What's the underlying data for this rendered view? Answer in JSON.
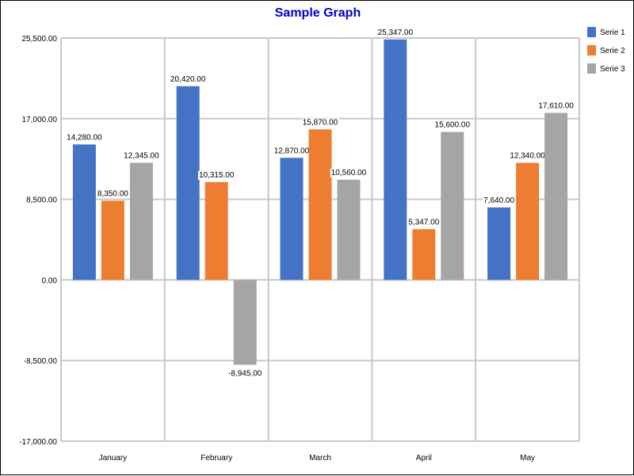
{
  "chart_data": {
    "type": "bar",
    "title": "Sample Graph",
    "categories": [
      "January",
      "February",
      "March",
      "April",
      "May"
    ],
    "series": [
      {
        "name": "Serie 1",
        "color": "#4472C4",
        "values": [
          14280,
          20420,
          12870,
          25347,
          7640
        ]
      },
      {
        "name": "Serie 2",
        "color": "#ED7D31",
        "values": [
          8350,
          10315,
          15870,
          5347,
          12340
        ]
      },
      {
        "name": "Serie 3",
        "color": "#A5A5A5",
        "values": [
          12345,
          -8945,
          10560,
          15600,
          17610
        ]
      }
    ],
    "ylim": [
      -17000,
      25500
    ],
    "yticks": [
      -17000,
      -8500,
      0,
      8500,
      17000,
      25500
    ],
    "ytick_labels": [
      "-17,000.00",
      "-8,500.00",
      "0.00",
      "8,500.00",
      "17,000.00",
      "25,500.00"
    ],
    "data_labels": [
      [
        "14,280.00",
        "20,420.00",
        "12,870.00",
        "25,347.00",
        "7,640.00"
      ],
      [
        "8,350.00",
        "10,315.00",
        "15,870.00",
        "5,347.00",
        "12,340.00"
      ],
      [
        "12,345.00",
        "-8,945.00",
        "10,560.00",
        "15,600.00",
        "17,610.00"
      ]
    ],
    "grid": true,
    "legend_position": "top-right",
    "title_color": "#0000CC"
  }
}
